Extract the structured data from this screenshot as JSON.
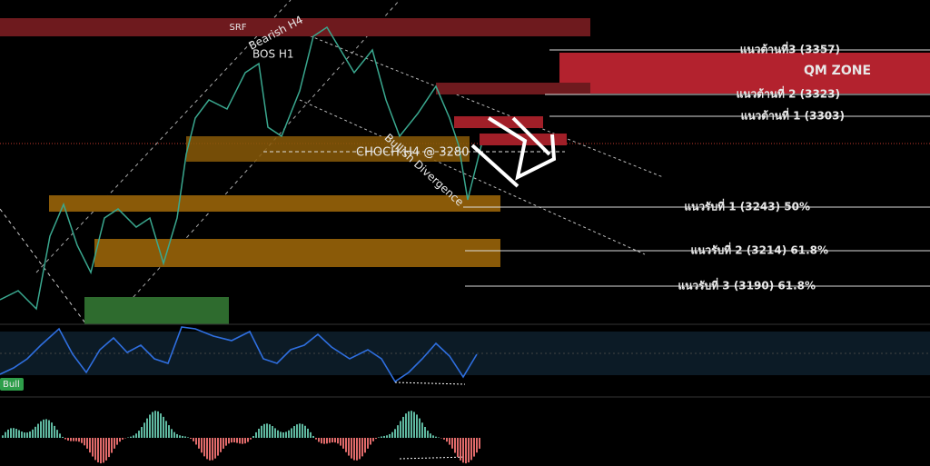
{
  "labels": {
    "srf": "SRF",
    "bearish_h4": "Bearish H4",
    "bos_h1": "BOS H1",
    "qm_zone": "QM ZONE",
    "choch": "CHOCH H4 @ 3280",
    "divergence": "Bullish Divergence",
    "bull": "Bull"
  },
  "resistance": [
    "แนวต้านที่3 (3357)",
    "แนวต้านที่ 2 (3323)",
    "แนวต้านที่ 1 (3303)"
  ],
  "support": [
    "แนวรับที่ 1 (3243) 50%",
    "แนวรับที่ 2 (3214) 61.8%",
    "แนวรับที่ 3 (3190) 61.8%"
  ]
}
